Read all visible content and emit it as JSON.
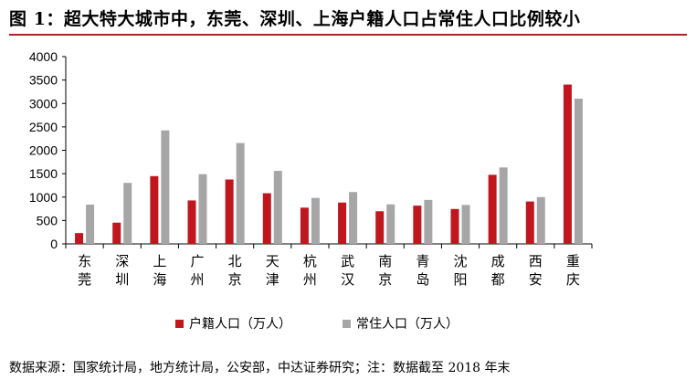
{
  "title": "图 1：超大特大城市中，东莞、深圳、上海户籍人口占常住人口比例较小",
  "source": "数据来源：国家统计局，地方统计局，公安部，中达证券研究；注：数据截至 2018 年末",
  "colors": {
    "series1": "#c0171e",
    "series2": "#a6a6a6",
    "title_rule": "#b11f24"
  },
  "chart_data": {
    "type": "bar",
    "categories": [
      "东莞",
      "深圳",
      "上海",
      "广州",
      "北京",
      "天津",
      "杭州",
      "武汉",
      "南京",
      "青岛",
      "沈阳",
      "成都",
      "西安",
      "重庆"
    ],
    "series": [
      {
        "name": "户籍人口（万人）",
        "values": [
          231,
          454,
          1448,
          928,
          1376,
          1082,
          774,
          883,
          697,
          817,
          746,
          1476,
          906,
          3404
        ]
      },
      {
        "name": "常住人口（万人）",
        "values": [
          839,
          1303,
          2424,
          1490,
          2154,
          1560,
          981,
          1108,
          844,
          939,
          831,
          1633,
          1000,
          3102
        ]
      }
    ],
    "ylim": [
      0,
      4000
    ],
    "yticks": [
      0,
      500,
      1000,
      1500,
      2000,
      2500,
      3000,
      3500,
      4000
    ],
    "legend_position": "bottom",
    "grid": false
  }
}
